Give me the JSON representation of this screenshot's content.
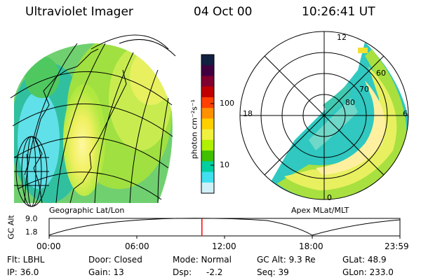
{
  "header": {
    "title": "Ultraviolet Imager",
    "date": "04 Oct 00",
    "time": "10:26:41 UT"
  },
  "colorbar": {
    "label": "photon cm⁻²s⁻¹",
    "ticks": [
      "100",
      "10"
    ],
    "colors": [
      "#102040",
      "#400040",
      "#800030",
      "#c00000",
      "#ff4000",
      "#ff9000",
      "#ffd000",
      "#f0f040",
      "#b0f000",
      "#40c000",
      "#00d0a0",
      "#40e0f0",
      "#d0f0f8"
    ]
  },
  "left_panel": {
    "label": "Geographic Lat/Lon"
  },
  "right_panel": {
    "label": "Apex MLat/MLT",
    "mlt_labels": {
      "top": "12",
      "left": "18",
      "right": "6",
      "bottom": "0"
    },
    "lat_labels": [
      "60",
      "70",
      "80"
    ]
  },
  "timeline": {
    "y_label": "GC Alt",
    "y_ticks": [
      "9.0",
      "1.8"
    ],
    "x_ticks": [
      "00:00",
      "06:00",
      "12:00",
      "18:00",
      "23:59"
    ],
    "current_time_hours": 10.445,
    "marker_color": "#ff0000"
  },
  "info": {
    "flt": "Flt: LBHL",
    "ip": "IP: 36.0",
    "door": "Door: Closed",
    "gain": "Gain: 13",
    "mode": "Mode: Normal",
    "dsp_label": "Dsp:",
    "dsp_value": "-2.2",
    "gc_alt": "GC Alt: 9.3 Re",
    "seq": "Seq: 39",
    "glat": "GLat: 48.9",
    "glon": "GLon: 233.0"
  }
}
